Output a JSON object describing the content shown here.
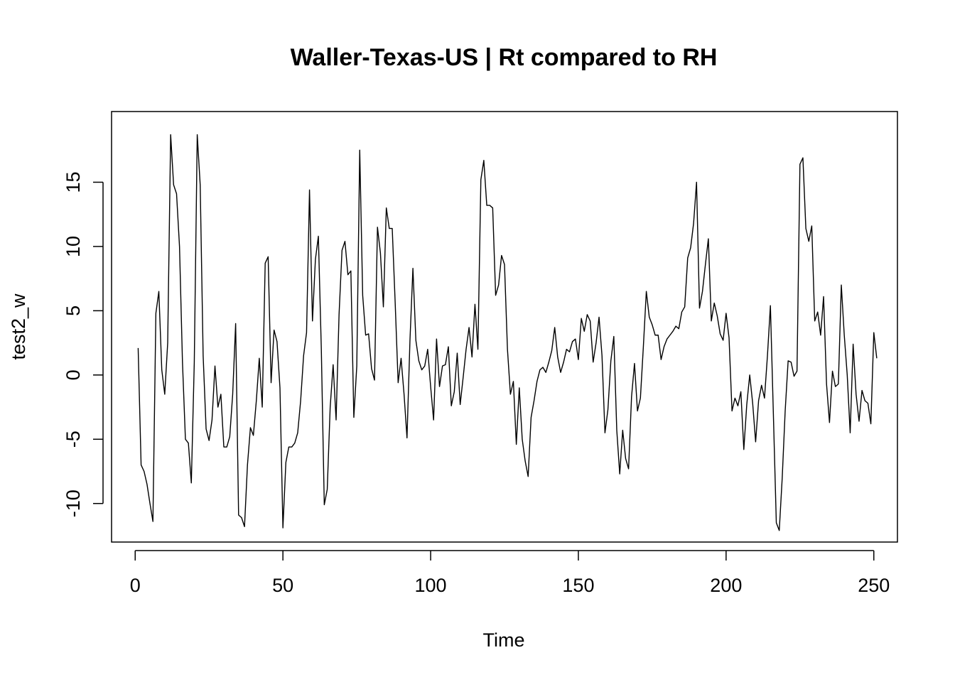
{
  "chart_data": {
    "type": "line",
    "title": "Waller-Texas-US | Rt compared to RH",
    "xlabel": "Time",
    "ylabel": "test2_w",
    "xlim": [
      -8,
      258
    ],
    "ylim": [
      -13,
      20.5
    ],
    "xticks": [
      0,
      50,
      100,
      150,
      200,
      250
    ],
    "yticks": [
      -10,
      -5,
      0,
      5,
      10,
      15
    ],
    "grid": false,
    "legend": "none",
    "line_color": "#000000",
    "series": [
      {
        "x_start": 1,
        "values": [
          2.1,
          -7.0,
          -7.5,
          -8.5,
          -10.0,
          -11.4,
          4.8,
          6.5,
          0.4,
          -1.5,
          2.5,
          18.7,
          14.8,
          14.1,
          10.0,
          1.0,
          -5.0,
          -5.3,
          -8.4,
          1.0,
          18.7,
          14.8,
          1.5,
          -4.2,
          -5.1,
          -3.5,
          0.7,
          -2.5,
          -1.5,
          -5.6,
          -5.6,
          -4.8,
          -1.5,
          4.0,
          -10.9,
          -11.1,
          -11.8,
          -7.0,
          -4.1,
          -4.7,
          -2.0,
          1.3,
          -2.5,
          8.7,
          9.2,
          -0.6,
          3.5,
          2.6,
          -1.0,
          -11.9,
          -6.8,
          -5.6,
          -5.6,
          -5.3,
          -4.5,
          -2.0,
          1.5,
          3.3,
          14.4,
          4.2,
          9.0,
          10.8,
          2.0,
          -10.1,
          -8.9,
          -2.5,
          0.8,
          -3.5,
          4.7,
          9.7,
          10.4,
          7.8,
          8.1,
          -3.3,
          0.7,
          17.5,
          6.2,
          3.1,
          3.2,
          0.5,
          -0.4,
          11.5,
          9.5,
          5.3,
          13.0,
          11.4,
          11.4,
          5.6,
          -0.6,
          1.3,
          -1.5,
          -4.9,
          2.7,
          8.3,
          2.7,
          1.1,
          0.4,
          0.7,
          2.0,
          -0.9,
          -3.5,
          2.8,
          -0.9,
          0.7,
          0.8,
          2.2,
          -2.4,
          -1.3,
          1.7,
          -2.3,
          -0.2,
          2.0,
          3.7,
          1.4,
          5.5,
          2.0,
          15.2,
          16.7,
          13.2,
          13.2,
          13.0,
          6.2,
          7.0,
          9.3,
          8.6,
          2.0,
          -1.5,
          -0.5,
          -5.4,
          -1.0,
          -5.0,
          -6.7,
          -7.9,
          -3.3,
          -2.0,
          -0.5,
          0.4,
          0.6,
          0.2,
          1.0,
          1.9,
          3.7,
          1.4,
          0.2,
          1.0,
          2.0,
          1.8,
          2.6,
          2.8,
          1.2,
          4.4,
          3.4,
          4.7,
          4.2,
          1.0,
          2.5,
          4.5,
          1.5,
          -4.5,
          -2.7,
          1.1,
          3.0,
          -4.3,
          -7.7,
          -4.3,
          -6.5,
          -7.3,
          -1.7,
          0.9,
          -2.8,
          -1.8,
          2.2,
          6.5,
          4.5,
          3.9,
          3.1,
          3.1,
          1.2,
          2.2,
          2.8,
          3.1,
          3.4,
          3.8,
          3.6,
          4.9,
          5.3,
          9.1,
          9.9,
          11.8,
          15.0,
          5.2,
          6.5,
          8.6,
          10.6,
          4.2,
          5.6,
          4.6,
          3.2,
          2.7,
          4.8,
          2.9,
          -2.8,
          -1.8,
          -2.4,
          -1.3,
          -5.8,
          -2.3,
          0.0,
          -2.2,
          -5.2,
          -2.0,
          -0.8,
          -1.8,
          1.5,
          5.4,
          -3.0,
          -11.5,
          -12.1,
          -8.0,
          -2.8,
          1.1,
          1.0,
          -0.1,
          0.3,
          16.4,
          16.9,
          11.4,
          10.4,
          11.6,
          4.2,
          4.9,
          3.1,
          6.1,
          -0.7,
          -3.7,
          0.3,
          -0.9,
          -0.7,
          7.0,
          3.1,
          0.0,
          -4.5,
          2.4,
          -1.5,
          -3.6,
          -1.2,
          -2.0,
          -2.2,
          -3.8,
          3.3,
          1.3
        ]
      }
    ]
  }
}
